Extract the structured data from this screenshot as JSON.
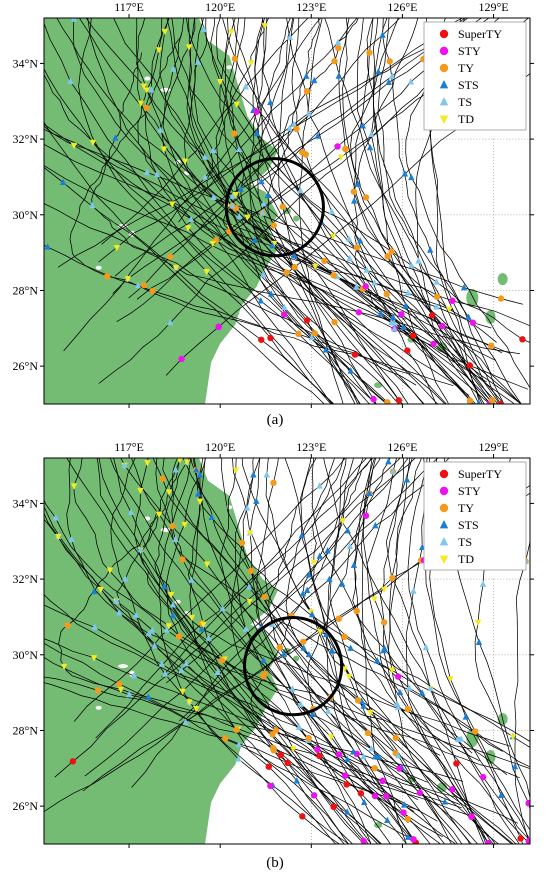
{
  "panels": [
    {
      "label": "(a)",
      "circle": {
        "lon": 121.8,
        "lat": 30.2,
        "r_deg": 1.6
      }
    },
    {
      "label": "(b)",
      "circle": {
        "lon": 122.4,
        "lat": 29.7,
        "r_deg": 1.6
      }
    }
  ],
  "map": {
    "lon_range": [
      114.2,
      130.2
    ],
    "lat_range": [
      25.0,
      35.2
    ],
    "lon_ticks": [
      117,
      120,
      123,
      126,
      129
    ],
    "lat_ticks": [
      34,
      32,
      30,
      28,
      26
    ],
    "lon_tick_labels": [
      "117°E",
      "120°E",
      "123°E",
      "126°E",
      "129°E"
    ],
    "lat_tick_labels": [
      "34°N",
      "32°N",
      "30°N",
      "28°N",
      "26°N"
    ],
    "land_color": "#74bb74",
    "sea_color": "#ffffff",
    "track_color": "#000000"
  },
  "legend": {
    "items": [
      {
        "label": "SuperTY",
        "shape": "circle",
        "color": "#ee1111"
      },
      {
        "label": "STY",
        "shape": "circle",
        "color": "#ee11ee"
      },
      {
        "label": "TY",
        "shape": "circle",
        "color": "#f39a1a"
      },
      {
        "label": "STS",
        "shape": "triangle-up",
        "color": "#1a7fd4"
      },
      {
        "label": "TS",
        "shape": "triangle-up",
        "color": "#7cc6ef"
      },
      {
        "label": "TD",
        "shape": "triangle-down",
        "color": "#f3ea22"
      }
    ]
  }
}
